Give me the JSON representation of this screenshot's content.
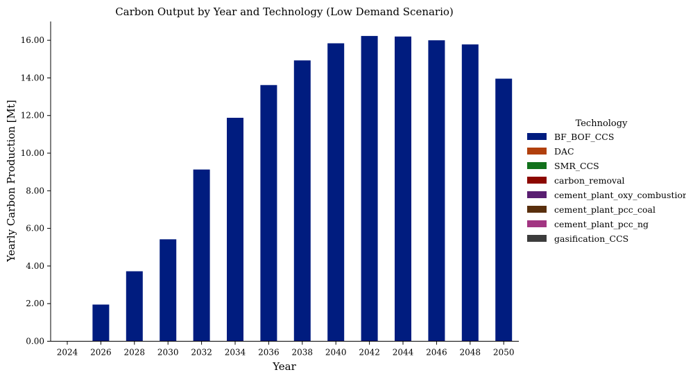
{
  "chart_data": {
    "type": "bar",
    "title": "Carbon Output by Year and Technology (Low Demand Scenario)",
    "xlabel": "Year",
    "ylabel": "Yearly Carbon Production [Mt]",
    "categories": [
      "2024",
      "2026",
      "2028",
      "2030",
      "2032",
      "2034",
      "2036",
      "2038",
      "2040",
      "2042",
      "2044",
      "2046",
      "2048",
      "2050"
    ],
    "ylim": [
      0,
      17
    ],
    "yticks": [
      0,
      2,
      4,
      6,
      8,
      10,
      12,
      14,
      16
    ],
    "ytick_labels": [
      "0.00",
      "2.00",
      "4.00",
      "6.00",
      "8.00",
      "10.00",
      "12.00",
      "14.00",
      "16.00"
    ],
    "stacked": true,
    "grid": false,
    "legend": {
      "title": "Technology",
      "placement": "right"
    },
    "series": [
      {
        "name": "BF_BOF_CCS",
        "color": "#001c7f",
        "values": [
          0,
          1.95,
          3.72,
          5.42,
          9.13,
          11.88,
          13.62,
          14.93,
          15.84,
          16.23,
          16.2,
          16.0,
          15.78,
          13.96
        ]
      },
      {
        "name": "DAC",
        "color": "#b1400d",
        "values": [
          0,
          0,
          0,
          0,
          0,
          0,
          0,
          0,
          0,
          0,
          0,
          0,
          0,
          0
        ]
      },
      {
        "name": "SMR_CCS",
        "color": "#12711c",
        "values": [
          0,
          0,
          0,
          0,
          0,
          0,
          0,
          0,
          0,
          0,
          0,
          0,
          0,
          0
        ]
      },
      {
        "name": "carbon_removal",
        "color": "#8c0800",
        "values": [
          0,
          0,
          0,
          0,
          0,
          0,
          0,
          0,
          0,
          0,
          0,
          0,
          0,
          0
        ]
      },
      {
        "name": "cement_plant_oxy_combustion",
        "color": "#591e71",
        "values": [
          0,
          0,
          0,
          0,
          0,
          0,
          0,
          0,
          0,
          0,
          0,
          0,
          0,
          0
        ]
      },
      {
        "name": "cement_plant_pcc_coal",
        "color": "#592f0d",
        "values": [
          0,
          0,
          0,
          0,
          0,
          0,
          0,
          0,
          0,
          0,
          0,
          0,
          0,
          0
        ]
      },
      {
        "name": "cement_plant_pcc_ng",
        "color": "#a23582",
        "values": [
          0,
          0,
          0,
          0,
          0,
          0,
          0,
          0,
          0,
          0,
          0,
          0,
          0,
          0
        ]
      },
      {
        "name": "gasification_CCS",
        "color": "#3c3c3c",
        "values": [
          0,
          0,
          0,
          0,
          0,
          0,
          0,
          0,
          0,
          0,
          0,
          0,
          0,
          0
        ]
      }
    ]
  }
}
